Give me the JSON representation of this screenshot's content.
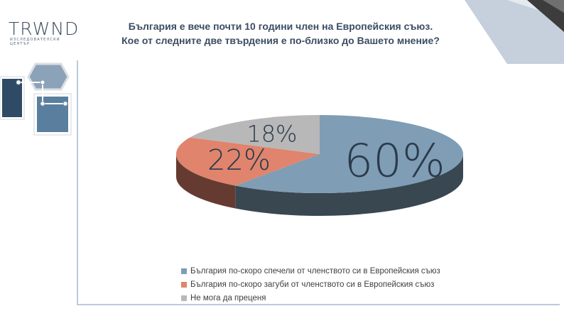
{
  "logo": {
    "word": "TRWND",
    "subtitle": "ИЗСЛЕДОВАТЕЛСКИ ЦЕНТЪР"
  },
  "title": {
    "line1": "България е вече почти 10 години член на Европейския съюз.",
    "line2": "Кое от следните две твърдения е по-близко до Вашето мнение?"
  },
  "colors": {
    "gained": "#7f9db4",
    "lost": "#e0846d",
    "undecided": "#b8b8b8",
    "label": "#2a3a4c"
  },
  "chart_data": {
    "type": "pie",
    "categories": [
      "България по-скоро спечели от членството си в Европейския съюз",
      "България по-скоро загуби от членството си в Европейския съюз",
      "Не мога да преценя"
    ],
    "values": [
      60,
      22,
      18
    ],
    "data_labels": [
      "60%",
      "22%",
      "18%"
    ],
    "legend_position": "bottom"
  }
}
